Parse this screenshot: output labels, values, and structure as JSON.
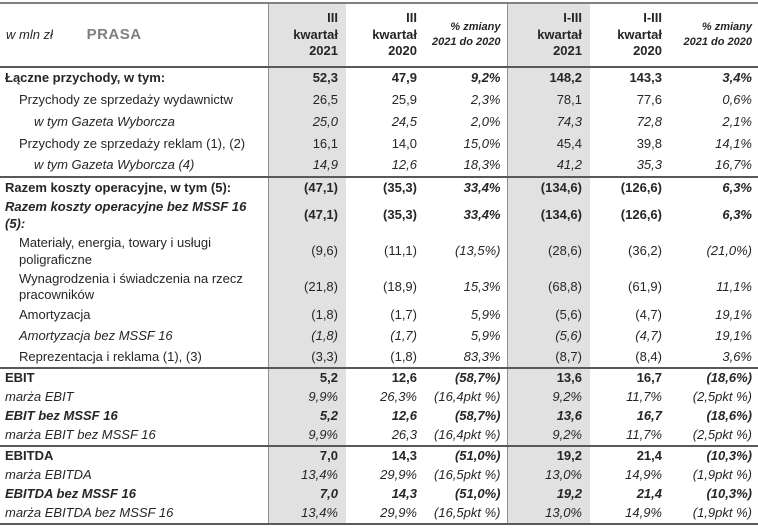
{
  "meta": {
    "unit_label": "w mln zł",
    "section_title": "PRASA"
  },
  "columns": [
    {
      "id": "q3-2021",
      "label": "III\nkwartał\n2021",
      "shaded": true,
      "pct": false
    },
    {
      "id": "q3-2020",
      "label": "III\nkwartał\n2020",
      "shaded": false,
      "pct": false
    },
    {
      "id": "chg-quarter",
      "label": "% zmiany\n2021 do 2020",
      "shaded": false,
      "pct": true
    },
    {
      "id": "ytd-2021",
      "label": "I-III\nkwartał\n2021",
      "shaded": true,
      "pct": false
    },
    {
      "id": "ytd-2020",
      "label": "I-III\nkwartał\n2020",
      "shaded": false,
      "pct": false
    },
    {
      "id": "chg-ytd",
      "label": "% zmiany\n2021 do 2020",
      "shaded": false,
      "pct": true
    }
  ],
  "rows": [
    {
      "label": "Łączne przychody, w tym:",
      "style": "bold",
      "indent": 0,
      "section_start": false,
      "values": [
        "52,3",
        "47,9",
        "9,2%",
        "148,2",
        "143,3",
        "3,4%"
      ]
    },
    {
      "label": "Przychody ze sprzedaży wydawnictw",
      "style": "regular",
      "indent": 1,
      "section_start": false,
      "values": [
        "26,5",
        "25,9",
        "2,3%",
        "78,1",
        "77,6",
        "0,6%"
      ]
    },
    {
      "label": "w tym Gazeta Wyborcza",
      "style": "italic",
      "indent": 2,
      "section_start": false,
      "values": [
        "25,0",
        "24,5",
        "2,0%",
        "74,3",
        "72,8",
        "2,1%"
      ]
    },
    {
      "label": "Przychody ze sprzedaży reklam (1), (2)",
      "style": "regular",
      "indent": 1,
      "section_start": false,
      "values": [
        "16,1",
        "14,0",
        "15,0%",
        "45,4",
        "39,8",
        "14,1%"
      ]
    },
    {
      "label": "w tym Gazeta Wyborcza (4)",
      "style": "italic",
      "indent": 2,
      "section_start": false,
      "values": [
        "14,9",
        "12,6",
        "18,3%",
        "41,2",
        "35,3",
        "16,7%"
      ]
    },
    {
      "label": "Razem koszty operacyjne, w tym (5):",
      "style": "bold",
      "indent": 0,
      "section_start": true,
      "values": [
        "(47,1)",
        "(35,3)",
        "33,4%",
        "(134,6)",
        "(126,6)",
        "6,3%"
      ]
    },
    {
      "label": "Razem koszty operacyjne bez MSSF 16\n(5):",
      "style": "bold-italic-label",
      "indent": 0,
      "section_start": false,
      "values": [
        "(47,1)",
        "(35,3)",
        "33,4%",
        "(134,6)",
        "(126,6)",
        "6,3%"
      ]
    },
    {
      "label": "Materiały, energia, towary i usługi\npoligraficzne",
      "style": "regular",
      "indent": 1,
      "section_start": false,
      "values": [
        "(9,6)",
        "(11,1)",
        "(13,5%)",
        "(28,6)",
        "(36,2)",
        "(21,0%)"
      ]
    },
    {
      "label": "Wynagrodzenia i świadczenia na rzecz\npracowników",
      "style": "regular",
      "indent": 1,
      "section_start": false,
      "values": [
        "(21,8)",
        "(18,9)",
        "15,3%",
        "(68,8)",
        "(61,9)",
        "11,1%"
      ]
    },
    {
      "label": "Amortyzacja",
      "style": "regular",
      "indent": 1,
      "section_start": false,
      "values": [
        "(1,8)",
        "(1,7)",
        "5,9%",
        "(5,6)",
        "(4,7)",
        "19,1%"
      ]
    },
    {
      "label": "Amortyzacja bez MSSF 16",
      "style": "italic",
      "indent": 1,
      "section_start": false,
      "values": [
        "(1,8)",
        "(1,7)",
        "5,9%",
        "(5,6)",
        "(4,7)",
        "19,1%"
      ]
    },
    {
      "label": "Reprezentacja i reklama (1), (3)",
      "style": "regular",
      "indent": 1,
      "section_start": false,
      "values": [
        "(3,3)",
        "(1,8)",
        "83,3%",
        "(8,7)",
        "(8,4)",
        "3,6%"
      ]
    },
    {
      "label": "EBIT",
      "style": "bold",
      "indent": 0,
      "section_start": true,
      "values": [
        "5,2",
        "12,6",
        "(58,7%)",
        "13,6",
        "16,7",
        "(18,6%)"
      ]
    },
    {
      "label": "marża EBIT",
      "style": "italic",
      "indent": 0,
      "section_start": false,
      "values": [
        "9,9%",
        "26,3%",
        "(16,4pkt %)",
        "9,2%",
        "11,7%",
        "(2,5pkt %)"
      ]
    },
    {
      "label": "EBIT bez MSSF 16",
      "style": "bold-italic",
      "indent": 0,
      "section_start": false,
      "values": [
        "5,2",
        "12,6",
        "(58,7%)",
        "13,6",
        "16,7",
        "(18,6%)"
      ]
    },
    {
      "label": "marża EBIT bez MSSF 16",
      "style": "italic",
      "indent": 0,
      "section_start": false,
      "values": [
        "9,9%",
        "26,3",
        "(16,4pkt %)",
        "9,2%",
        "11,7%",
        "(2,5pkt %)"
      ]
    },
    {
      "label": "EBITDA",
      "style": "bold",
      "indent": 0,
      "section_start": true,
      "values": [
        "7,0",
        "14,3",
        "(51,0%)",
        "19,2",
        "21,4",
        "(10,3%)"
      ]
    },
    {
      "label": "marża EBITDA",
      "style": "italic",
      "indent": 0,
      "section_start": false,
      "values": [
        "13,4%",
        "29,9%",
        "(16,5pkt %)",
        "13,0%",
        "14,9%",
        "(1,9pkt %)"
      ]
    },
    {
      "label": "EBITDA bez MSSF 16",
      "style": "bold-italic",
      "indent": 0,
      "section_start": false,
      "values": [
        "7,0",
        "14,3",
        "(51,0%)",
        "19,2",
        "21,4",
        "(10,3%)"
      ]
    },
    {
      "label": "marża EBITDA bez MSSF 16",
      "style": "italic",
      "indent": 0,
      "section_start": false,
      "values": [
        "13,4%",
        "29,9%",
        "(16,5pkt %)",
        "13,0%",
        "14,9%",
        "(1,9pkt %)"
      ]
    }
  ],
  "colors": {
    "shade": "#e1e1e1",
    "section_border": "#595959",
    "top_border": "#7f7f7f",
    "grid_line": "#8f8f8f",
    "text": "#262626",
    "title_gray": "#7f7f7f"
  }
}
